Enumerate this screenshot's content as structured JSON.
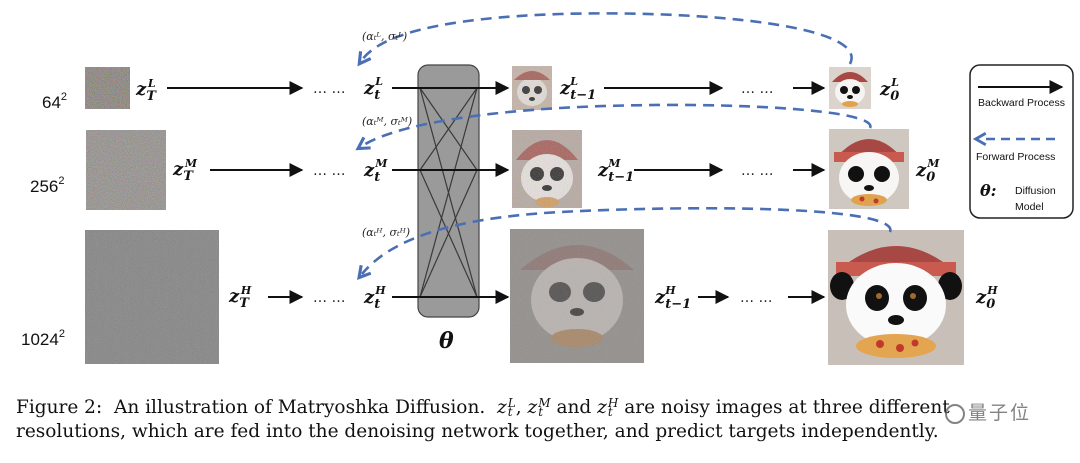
{
  "resolutions": {
    "low": {
      "base": "64",
      "exp": "2"
    },
    "mid": {
      "base": "256",
      "exp": "2"
    },
    "high": {
      "base": "1024",
      "exp": "2"
    }
  },
  "variables": {
    "zT": "z",
    "T": "T",
    "zt": "z",
    "t": "t",
    "t_minus_1": "t−1",
    "zero": "0",
    "L": "L",
    "M": "M",
    "H": "H"
  },
  "ellipsis": "… …",
  "forward_params": {
    "low": "(αₜᴸ, σₜᴸ)",
    "mid": "(αₜᴹ, σₜᴹ)",
    "high": "(αₜᴴ, σₜᴴ)"
  },
  "network_label": "θ",
  "legend": {
    "backward": "Backward Process",
    "forward": "Forward Process",
    "theta_symbol": "θ:",
    "model_line1": "Diffusion",
    "model_line2": "Model"
  },
  "caption": {
    "prefix": "Figure 2:",
    "text1": "An illustration of Matryoshka Diffusion.",
    "z": "z",
    "sep1": ",",
    "and": "and",
    "text2": "are noisy images at three different",
    "text3": "resolutions, which are fed into the denoising network together, and predict targets independently."
  },
  "watermark": "量子位",
  "colors": {
    "forward": "#4a6fb5",
    "backward": "#111111",
    "network_fill": "#9a9a9a"
  }
}
